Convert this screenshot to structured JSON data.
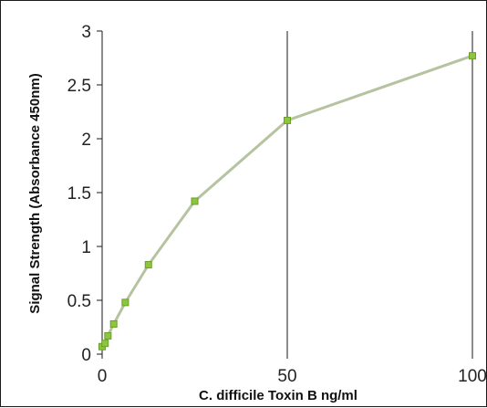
{
  "chart_data": {
    "type": "line",
    "title": "",
    "xlabel": "C. difficile  Toxin B ng/ml",
    "ylabel": "Signal Strength (Absorbance 450nm)",
    "xlim": [
      0,
      100
    ],
    "ylim": [
      0,
      3
    ],
    "x_ticks": [
      "0",
      "50",
      "100"
    ],
    "y_ticks": [
      "0",
      "0.5",
      "1",
      "1.5",
      "2",
      "2.5",
      "3"
    ],
    "grid": "vertical",
    "legend": "none",
    "series": [
      {
        "x": [
          0,
          0.78,
          1.56,
          3.125,
          6.25,
          12.5,
          25,
          50,
          100
        ],
        "y": [
          0.07,
          0.1,
          0.17,
          0.28,
          0.48,
          0.83,
          1.42,
          2.17,
          2.77
        ]
      }
    ],
    "colors": {
      "line": "#b5c3a0",
      "marker": "#8cc63f",
      "marker_edge": "#6b9e28",
      "grid": "#1a1a1a"
    }
  }
}
